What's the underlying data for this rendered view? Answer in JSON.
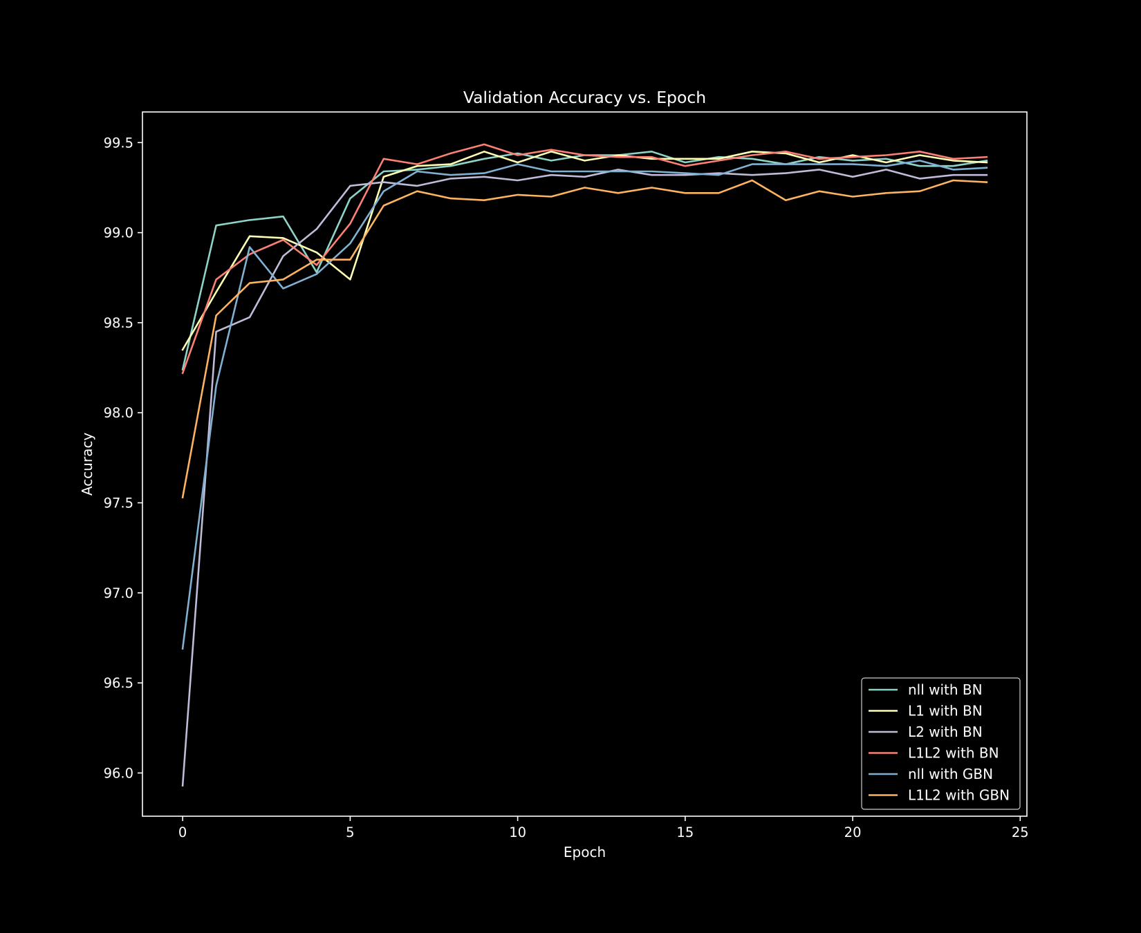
{
  "chart_data": {
    "type": "line",
    "title": "Validation Accuracy vs. Epoch",
    "xlabel": "Epoch",
    "ylabel": "Accuracy",
    "xlim": [
      -1.2,
      25.2
    ],
    "ylim": [
      95.76,
      99.67
    ],
    "xticks": [
      0,
      5,
      10,
      15,
      20,
      25
    ],
    "yticks": [
      96.0,
      96.5,
      97.0,
      97.5,
      98.0,
      98.5,
      99.0,
      99.5
    ],
    "grid": false,
    "legend_position": "lower-right",
    "background": "#000000",
    "foreground": "#ffffff",
    "x": [
      0,
      1,
      2,
      3,
      4,
      5,
      6,
      7,
      8,
      9,
      10,
      11,
      12,
      13,
      14,
      15,
      16,
      17,
      18,
      19,
      20,
      21,
      22,
      23,
      24
    ],
    "series": [
      {
        "name": "nll with BN",
        "color": "#8dd3c7",
        "values": [
          98.24,
          99.04,
          99.07,
          99.09,
          98.78,
          99.19,
          99.34,
          99.35,
          99.37,
          99.41,
          99.44,
          99.4,
          99.43,
          99.43,
          99.45,
          99.39,
          99.42,
          99.41,
          99.38,
          99.42,
          99.4,
          99.41,
          99.37,
          99.37,
          99.4
        ]
      },
      {
        "name": "L1 with BN",
        "color": "#feffb3",
        "values": [
          98.35,
          98.67,
          98.98,
          98.97,
          98.89,
          98.74,
          99.31,
          99.37,
          99.38,
          99.45,
          99.39,
          99.45,
          99.4,
          99.43,
          99.41,
          99.41,
          99.41,
          99.45,
          99.44,
          99.39,
          99.43,
          99.39,
          99.43,
          99.4,
          99.39
        ]
      },
      {
        "name": "L2 with BN",
        "color": "#bfbbd9",
        "values": [
          95.93,
          98.45,
          98.53,
          98.87,
          99.02,
          99.26,
          99.28,
          99.26,
          99.3,
          99.31,
          99.29,
          99.32,
          99.31,
          99.35,
          99.32,
          99.32,
          99.33,
          99.32,
          99.33,
          99.35,
          99.31,
          99.35,
          99.3,
          99.32,
          99.32
        ]
      },
      {
        "name": "L1L2 with BN",
        "color": "#fa8174",
        "values": [
          98.22,
          98.74,
          98.88,
          98.96,
          98.82,
          99.05,
          99.41,
          99.38,
          99.44,
          99.49,
          99.43,
          99.46,
          99.43,
          99.42,
          99.42,
          99.37,
          99.4,
          99.43,
          99.45,
          99.41,
          99.42,
          99.43,
          99.45,
          99.41,
          99.42
        ]
      },
      {
        "name": "nll with GBN",
        "color": "#81b1d2",
        "values": [
          96.69,
          98.15,
          98.92,
          98.69,
          98.77,
          98.94,
          99.23,
          99.34,
          99.32,
          99.33,
          99.38,
          99.34,
          99.34,
          99.34,
          99.34,
          99.33,
          99.32,
          99.38,
          99.38,
          99.38,
          99.38,
          99.37,
          99.4,
          99.35,
          99.36
        ]
      },
      {
        "name": "L1L2 with GBN",
        "color": "#fdb462",
        "values": [
          97.53,
          98.54,
          98.72,
          98.74,
          98.85,
          98.85,
          99.15,
          99.23,
          99.19,
          99.18,
          99.21,
          99.2,
          99.25,
          99.22,
          99.25,
          99.22,
          99.22,
          99.29,
          99.18,
          99.23,
          99.2,
          99.22,
          99.23,
          99.29,
          99.28
        ]
      }
    ]
  }
}
